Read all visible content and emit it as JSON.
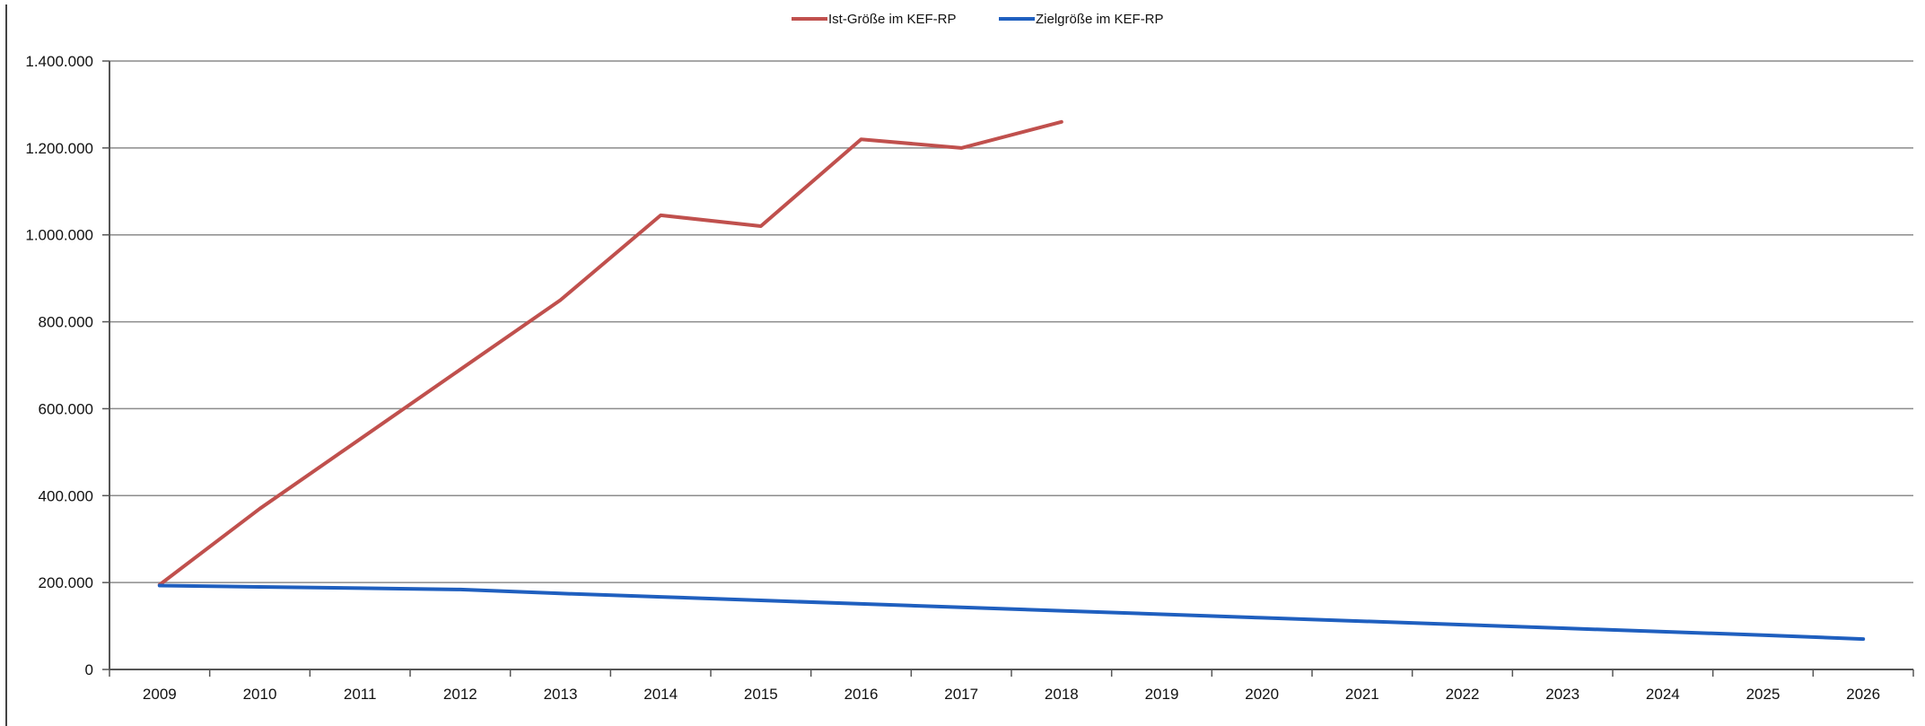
{
  "chart_data": {
    "type": "line",
    "title": "",
    "xlabel": "",
    "ylabel": "",
    "x": [
      "2009",
      "2010",
      "2011",
      "2012",
      "2013",
      "2014",
      "2015",
      "2016",
      "2017",
      "2018",
      "2019",
      "2020",
      "2021",
      "2022",
      "2023",
      "2024",
      "2025",
      "2026"
    ],
    "y_ticks": [
      "0",
      "200.000",
      "400.000",
      "600.000",
      "800.000",
      "1.000.000",
      "1.200.000",
      "1.400.000"
    ],
    "ylim": [
      0,
      1400000
    ],
    "grid": "horizontal",
    "legend_position": "top",
    "series": [
      {
        "name": "Ist-Größe im KEF-RP",
        "color": "#c0504d",
        "values": [
          195000,
          370000,
          530000,
          690000,
          850000,
          1045000,
          1020000,
          1220000,
          1200000,
          1260000,
          null,
          null,
          null,
          null,
          null,
          null,
          null,
          null
        ]
      },
      {
        "name": "Zielgröße im KEF-RP",
        "color": "#1f5fbf",
        "values": [
          193000,
          190000,
          187000,
          184000,
          175000,
          167000,
          159000,
          151000,
          143000,
          135000,
          127000,
          119000,
          111000,
          103000,
          95000,
          87000,
          79000,
          70000
        ]
      }
    ]
  }
}
